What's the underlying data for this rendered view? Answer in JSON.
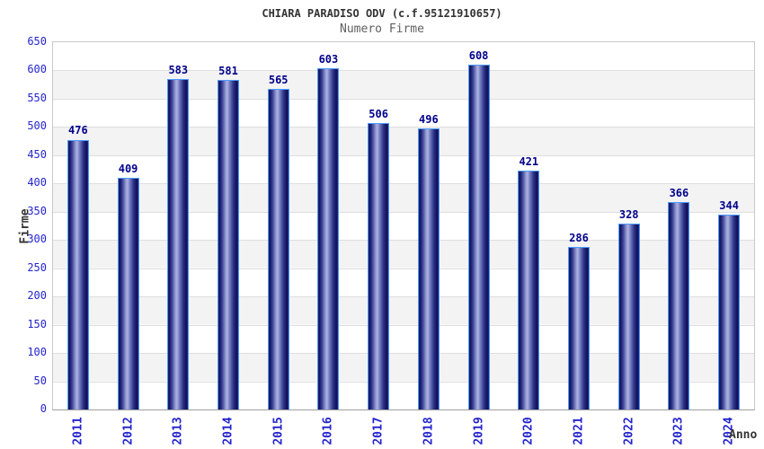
{
  "chart_data": {
    "type": "bar",
    "title": "CHIARA PARADISO ODV (c.f.95121910657)",
    "subtitle": "Numero Firme",
    "xlabel": "Anno",
    "ylabel": "Firme",
    "categories": [
      "2011",
      "2012",
      "2013",
      "2014",
      "2015",
      "2016",
      "2017",
      "2018",
      "2019",
      "2020",
      "2021",
      "2022",
      "2023",
      "2024"
    ],
    "values": [
      476,
      409,
      583,
      581,
      565,
      603,
      506,
      496,
      608,
      421,
      286,
      328,
      366,
      344
    ],
    "ylim": [
      0,
      650
    ],
    "ytick_step": 50,
    "grid": true,
    "legend_position": "none",
    "colors": {
      "tick_label": "#2424cd",
      "value_label": "#00008b",
      "title": "#333333",
      "subtitle": "#5f5f5f",
      "axis_label": "#333333",
      "plot_band": "#f3f3f3",
      "grid_line": "#dedede",
      "bar_dark": "#101057",
      "bar_mid": "#363c92",
      "bar_light": "#aab1e0",
      "bar_outline": "#4b9bff",
      "background": "#ffffff"
    }
  }
}
